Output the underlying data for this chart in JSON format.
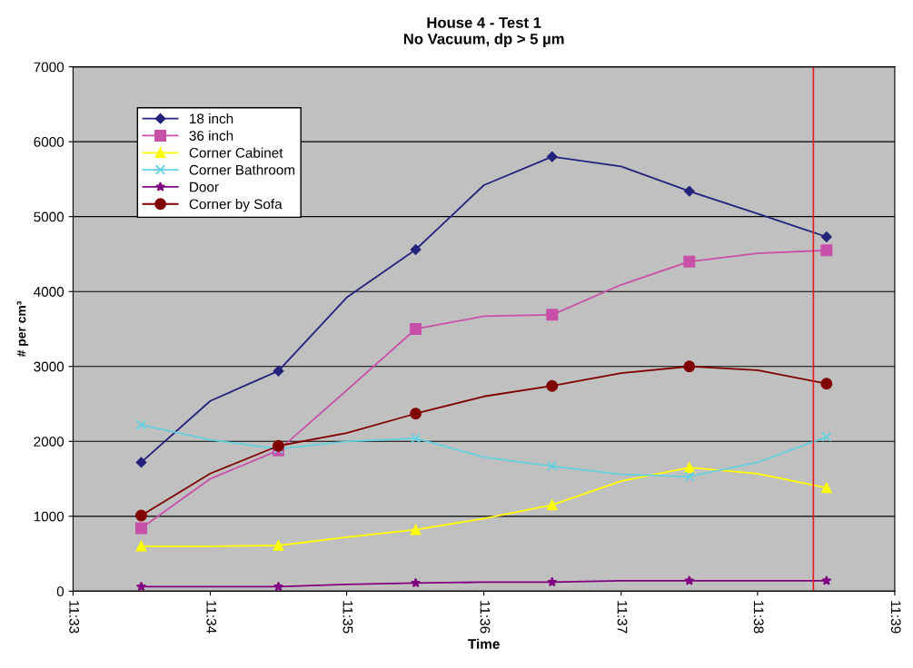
{
  "chart_data": {
    "type": "line",
    "title": "House 4 - Test 1\nNo Vacuum, dp > 5 µm",
    "xlabel": "Time",
    "ylabel": "# per cm³",
    "x": [
      11.5583,
      11.5667,
      11.575,
      11.5833,
      11.5917,
      11.6,
      11.6083,
      11.6167,
      11.625,
      11.6333,
      11.6417
    ],
    "series": [
      {
        "name": "18 inch",
        "color": "#23237b",
        "marker": "diamond",
        "values": [
          1720,
          2540,
          2940,
          3920,
          4560,
          5420,
          5800,
          5670,
          5340,
          5040,
          4730
        ]
      },
      {
        "name": "36 inch",
        "color": "#c850a8",
        "marker": "square",
        "values": [
          840,
          1500,
          1880,
          2680,
          3500,
          3670,
          3690,
          4090,
          4400,
          4510,
          4550
        ]
      },
      {
        "name": "Corner Cabinet",
        "color": "#ffff00",
        "marker": "triangle",
        "values": [
          600,
          600,
          610,
          720,
          820,
          970,
          1150,
          1470,
          1650,
          1570,
          1380
        ]
      },
      {
        "name": "Corner Bathroom",
        "color": "#66d0e0",
        "marker": "cross",
        "values": [
          2220,
          2020,
          1900,
          2000,
          2040,
          1790,
          1670,
          1560,
          1530,
          1720,
          2060
        ]
      },
      {
        "name": "Door",
        "color": "#800080",
        "marker": "star",
        "values": [
          60,
          60,
          60,
          90,
          110,
          120,
          120,
          140,
          140,
          140,
          140
        ]
      },
      {
        "name": "Corner by Sofa",
        "color": "#800000",
        "marker": "circle",
        "values": [
          1010,
          1570,
          1940,
          2110,
          2370,
          2600,
          2740,
          2910,
          3000,
          2950,
          2770
        ]
      }
    ],
    "xlim": [
      11.55,
      11.65
    ],
    "xticks": [
      {
        "value": 11.55,
        "label": "11:33"
      },
      {
        "value": 11.5667,
        "label": "11:34"
      },
      {
        "value": 11.5833,
        "label": "11:35"
      },
      {
        "value": 11.6,
        "label": "11:36"
      },
      {
        "value": 11.6167,
        "label": "11:37"
      },
      {
        "value": 11.6333,
        "label": "11:38"
      },
      {
        "value": 11.65,
        "label": "11:39"
      }
    ],
    "ylim": [
      0,
      7000
    ],
    "yticks": [
      0,
      1000,
      2000,
      3000,
      4000,
      5000,
      6000,
      7000
    ],
    "grid": "y",
    "legend": "top left",
    "ref_lines": [
      {
        "axis": "x",
        "value": 11.6401,
        "color": "#e02020",
        "line_style": "solid"
      }
    ]
  }
}
